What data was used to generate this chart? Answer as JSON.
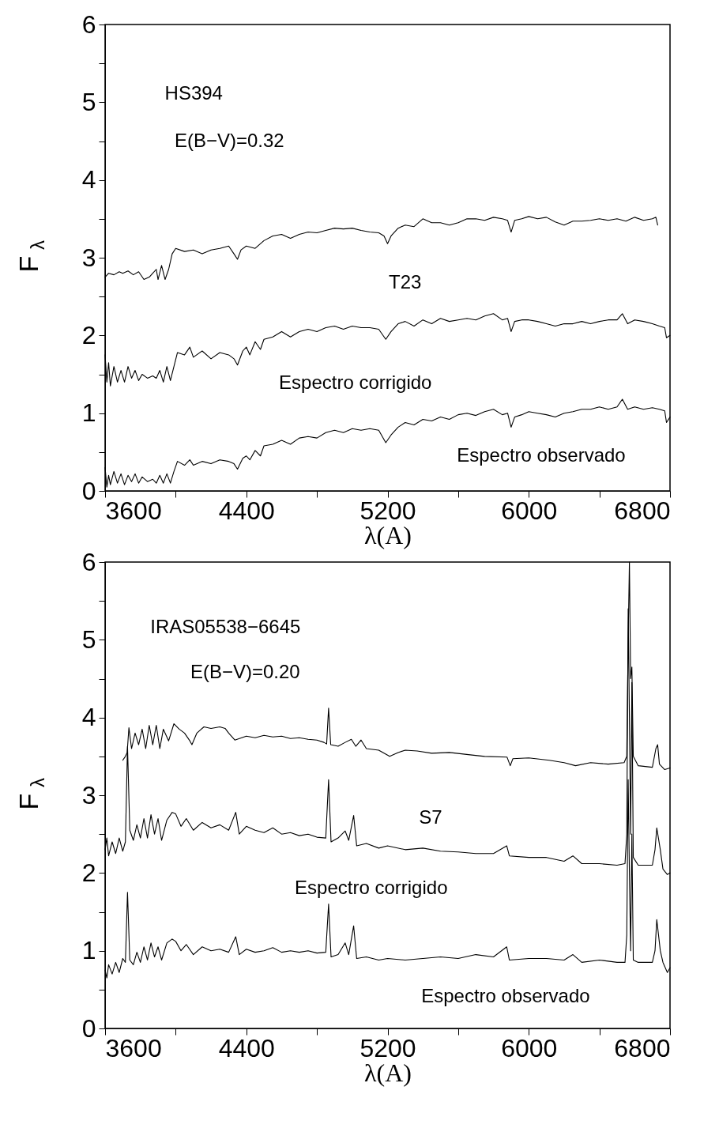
{
  "chart_data": [
    {
      "type": "line",
      "ylabel": "F$_{λ}$",
      "xlabel": "λ(A)",
      "xlim": [
        3600,
        6800
      ],
      "ylim": [
        0,
        6
      ],
      "grid": false,
      "legend": false,
      "marker": "none",
      "line_style": "solid",
      "xticks": [
        3600,
        {
          "value": 4000,
          "label": null
        },
        4400,
        {
          "value": 4800,
          "label": null
        },
        5200,
        {
          "value": 5600,
          "label": null
        },
        6000,
        {
          "value": 6400,
          "label": null
        },
        6800
      ],
      "yticks": [
        0,
        {
          "value": 0.5,
          "label": null
        },
        1,
        {
          "value": 1.5,
          "label": null
        },
        2,
        {
          "value": 2.5,
          "label": null
        },
        3,
        {
          "value": 3.5,
          "label": null
        },
        4,
        {
          "value": 4.5,
          "label": null
        },
        5,
        {
          "value": 5.5,
          "label": null
        },
        6
      ],
      "annotations": [
        "HS394",
        "E(B−V)=0.32",
        "T23",
        "Espectro corrigido",
        "Espectro observado"
      ],
      "series": [
        {
          "color": "#000000",
          "x": [
            3600,
            3620,
            3650,
            3680,
            3700,
            3730,
            3760,
            3790,
            3820,
            3850,
            3870,
            3890,
            3900,
            3920,
            3940,
            3960,
            3980,
            4000,
            4050,
            4100,
            4150,
            4200,
            4250,
            4300,
            4330,
            4350,
            4370,
            4400,
            4450,
            4500,
            4550,
            4600,
            4650,
            4700,
            4750,
            4800,
            4850,
            4900,
            4950,
            5000,
            5050,
            5100,
            5150,
            5180,
            5200,
            5220,
            5260,
            5300,
            5350,
            5400,
            5450,
            5500,
            5550,
            5600,
            5650,
            5700,
            5750,
            5800,
            5850,
            5880,
            5900,
            5920,
            5960,
            6000,
            6050,
            6100,
            6150,
            6200,
            6250,
            6300,
            6350,
            6400,
            6450,
            6500,
            6550,
            6600,
            6650,
            6700,
            6720,
            6730
          ],
          "values": [
            2.75,
            2.8,
            2.78,
            2.82,
            2.8,
            2.83,
            2.78,
            2.82,
            2.72,
            2.75,
            2.8,
            2.85,
            2.72,
            2.9,
            2.72,
            2.85,
            3.05,
            3.12,
            3.08,
            3.1,
            3.05,
            3.1,
            3.12,
            3.15,
            3.05,
            2.98,
            3.1,
            3.15,
            3.12,
            3.22,
            3.28,
            3.3,
            3.25,
            3.3,
            3.33,
            3.32,
            3.35,
            3.38,
            3.37,
            3.38,
            3.35,
            3.33,
            3.32,
            3.28,
            3.18,
            3.28,
            3.38,
            3.42,
            3.4,
            3.5,
            3.45,
            3.45,
            3.42,
            3.45,
            3.5,
            3.5,
            3.48,
            3.52,
            3.5,
            3.48,
            3.33,
            3.48,
            3.5,
            3.53,
            3.5,
            3.52,
            3.46,
            3.42,
            3.47,
            3.47,
            3.48,
            3.5,
            3.48,
            3.5,
            3.47,
            3.52,
            3.48,
            3.5,
            3.52,
            3.42
          ]
        },
        {
          "color": "#000000",
          "x": [
            3600,
            3610,
            3620,
            3630,
            3650,
            3670,
            3690,
            3710,
            3730,
            3750,
            3770,
            3790,
            3810,
            3840,
            3870,
            3890,
            3910,
            3930,
            3950,
            3970,
            3990,
            4010,
            4050,
            4080,
            4100,
            4150,
            4200,
            4250,
            4300,
            4330,
            4350,
            4380,
            4400,
            4420,
            4450,
            4480,
            4500,
            4550,
            4600,
            4650,
            4700,
            4750,
            4800,
            4850,
            4900,
            4950,
            5000,
            5050,
            5100,
            5150,
            5190,
            5220,
            5260,
            5300,
            5350,
            5400,
            5450,
            5500,
            5550,
            5600,
            5650,
            5700,
            5750,
            5800,
            5850,
            5880,
            5900,
            5920,
            5960,
            6000,
            6050,
            6100,
            6150,
            6200,
            6250,
            6300,
            6350,
            6400,
            6450,
            6500,
            6530,
            6560,
            6600,
            6650,
            6700,
            6740,
            6770,
            6780,
            6800
          ],
          "values": [
            1.75,
            1.4,
            1.65,
            1.35,
            1.6,
            1.4,
            1.55,
            1.4,
            1.6,
            1.45,
            1.55,
            1.42,
            1.5,
            1.45,
            1.48,
            1.45,
            1.55,
            1.4,
            1.6,
            1.42,
            1.6,
            1.78,
            1.75,
            1.85,
            1.72,
            1.8,
            1.7,
            1.78,
            1.75,
            1.7,
            1.62,
            1.8,
            1.85,
            1.75,
            1.92,
            1.82,
            1.95,
            1.98,
            2.05,
            1.98,
            2.05,
            2.08,
            2.05,
            2.1,
            2.12,
            2.08,
            2.12,
            2.1,
            2.1,
            2.08,
            1.95,
            2.05,
            2.15,
            2.18,
            2.12,
            2.2,
            2.15,
            2.22,
            2.18,
            2.2,
            2.22,
            2.2,
            2.25,
            2.28,
            2.2,
            2.22,
            2.05,
            2.18,
            2.2,
            2.2,
            2.18,
            2.15,
            2.12,
            2.15,
            2.15,
            2.18,
            2.15,
            2.18,
            2.2,
            2.2,
            2.28,
            2.15,
            2.2,
            2.18,
            2.15,
            2.12,
            2.1,
            1.97,
            2.0
          ]
        },
        {
          "color": "#000000",
          "x": [
            3600,
            3610,
            3620,
            3630,
            3650,
            3670,
            3690,
            3710,
            3730,
            3750,
            3770,
            3790,
            3810,
            3840,
            3870,
            3890,
            3910,
            3930,
            3950,
            3970,
            3990,
            4010,
            4050,
            4080,
            4100,
            4150,
            4200,
            4250,
            4300,
            4330,
            4350,
            4380,
            4400,
            4420,
            4450,
            4480,
            4500,
            4550,
            4600,
            4650,
            4700,
            4750,
            4800,
            4850,
            4900,
            4950,
            5000,
            5050,
            5100,
            5150,
            5190,
            5220,
            5260,
            5300,
            5350,
            5400,
            5450,
            5500,
            5550,
            5600,
            5650,
            5700,
            5750,
            5800,
            5850,
            5880,
            5900,
            5920,
            5960,
            6000,
            6050,
            6100,
            6150,
            6200,
            6250,
            6300,
            6350,
            6400,
            6450,
            6500,
            6530,
            6560,
            6600,
            6650,
            6700,
            6740,
            6770,
            6780,
            6800
          ],
          "values": [
            0.3,
            0.05,
            0.2,
            0.08,
            0.25,
            0.1,
            0.22,
            0.08,
            0.2,
            0.12,
            0.22,
            0.1,
            0.18,
            0.12,
            0.15,
            0.1,
            0.2,
            0.1,
            0.22,
            0.1,
            0.25,
            0.38,
            0.33,
            0.4,
            0.33,
            0.38,
            0.35,
            0.4,
            0.38,
            0.35,
            0.28,
            0.42,
            0.45,
            0.4,
            0.52,
            0.45,
            0.58,
            0.6,
            0.65,
            0.6,
            0.68,
            0.7,
            0.68,
            0.75,
            0.78,
            0.75,
            0.8,
            0.78,
            0.8,
            0.78,
            0.62,
            0.72,
            0.82,
            0.88,
            0.85,
            0.92,
            0.9,
            0.95,
            0.92,
            0.98,
            1.0,
            0.97,
            1.02,
            1.05,
            0.98,
            1.0,
            0.82,
            0.95,
            0.98,
            1.02,
            1.0,
            0.98,
            0.95,
            1.0,
            1.02,
            1.05,
            1.05,
            1.08,
            1.05,
            1.08,
            1.18,
            1.05,
            1.08,
            1.05,
            1.07,
            1.05,
            1.03,
            0.88,
            0.95
          ]
        }
      ]
    },
    {
      "type": "line",
      "ylabel": "F$_{λ}$",
      "xlabel": "λ(A)",
      "xlim": [
        3600,
        6800
      ],
      "ylim": [
        0,
        6
      ],
      "grid": false,
      "legend": false,
      "marker": "none",
      "line_style": "solid",
      "xticks": [
        3600,
        {
          "value": 4000,
          "label": null
        },
        4400,
        {
          "value": 4800,
          "label": null
        },
        5200,
        {
          "value": 5600,
          "label": null
        },
        6000,
        {
          "value": 6400,
          "label": null
        },
        6800
      ],
      "yticks": [
        0,
        {
          "value": 0.5,
          "label": null
        },
        1,
        {
          "value": 1.5,
          "label": null
        },
        2,
        {
          "value": 2.5,
          "label": null
        },
        3,
        {
          "value": 3.5,
          "label": null
        },
        4,
        {
          "value": 4.5,
          "label": null
        },
        5,
        {
          "value": 5.5,
          "label": null
        },
        6
      ],
      "annotations": [
        "IRAS05538−6645",
        "E(B−V)=0.20",
        "S7",
        "Espectro corrigido",
        "Espectro observado"
      ],
      "series": [
        {
          "color": "#000000",
          "x": [
            3700,
            3715,
            3725,
            3735,
            3750,
            3770,
            3790,
            3810,
            3830,
            3850,
            3870,
            3890,
            3910,
            3930,
            3960,
            3990,
            4020,
            4050,
            4080,
            4092,
            4120,
            4160,
            4200,
            4250,
            4280,
            4300,
            4335,
            4400,
            4450,
            4500,
            4550,
            4600,
            4650,
            4700,
            4750,
            4800,
            4840,
            4855,
            4866,
            4878,
            4920,
            4960,
            4995,
            5020,
            5050,
            5080,
            5150,
            5212,
            5260,
            5300,
            5368,
            5450,
            5550,
            5668,
            5750,
            5877,
            5895,
            5910,
            6000,
            6116,
            6200,
            6265,
            6350,
            6450,
            6540,
            6555,
            6563,
            6570,
            6577,
            6584,
            6592,
            6620,
            6700,
            6720,
            6730,
            6740,
            6770,
            6800
          ],
          "values": [
            3.45,
            3.5,
            3.55,
            3.87,
            3.6,
            3.8,
            3.65,
            3.85,
            3.6,
            3.9,
            3.65,
            3.9,
            3.6,
            3.85,
            3.7,
            3.92,
            3.85,
            3.8,
            3.7,
            3.65,
            3.8,
            3.88,
            3.86,
            3.88,
            3.86,
            3.8,
            3.71,
            3.76,
            3.74,
            3.77,
            3.75,
            3.76,
            3.73,
            3.74,
            3.72,
            3.71,
            3.68,
            3.66,
            4.12,
            3.65,
            3.63,
            3.68,
            3.72,
            3.63,
            3.71,
            3.6,
            3.58,
            3.5,
            3.55,
            3.58,
            3.57,
            3.54,
            3.55,
            3.52,
            3.5,
            3.49,
            3.38,
            3.47,
            3.48,
            3.45,
            3.42,
            3.38,
            3.42,
            3.4,
            3.42,
            3.5,
            5.0,
            6.0,
            4.5,
            4.65,
            3.5,
            3.38,
            3.36,
            3.6,
            3.65,
            3.4,
            3.33,
            3.35
          ]
        },
        {
          "color": "#000000",
          "x": [
            3600,
            3610,
            3620,
            3640,
            3660,
            3680,
            3700,
            3715,
            3727,
            3740,
            3760,
            3780,
            3800,
            3820,
            3840,
            3860,
            3880,
            3900,
            3920,
            3950,
            3980,
            4000,
            4030,
            4060,
            4100,
            4150,
            4200,
            4250,
            4300,
            4340,
            4360,
            4400,
            4450,
            4500,
            4550,
            4600,
            4650,
            4700,
            4750,
            4800,
            4850,
            4866,
            4880,
            4920,
            4960,
            4980,
            5008,
            5025,
            5080,
            5150,
            5200,
            5300,
            5400,
            5500,
            5600,
            5700,
            5800,
            5875,
            5890,
            6000,
            6100,
            6200,
            6250,
            6300,
            6400,
            6500,
            6545,
            6555,
            6563,
            6570,
            6577,
            6584,
            6592,
            6620,
            6700,
            6715,
            6725,
            6745,
            6760,
            6785,
            6800
          ],
          "values": [
            2.3,
            2.45,
            2.22,
            2.4,
            2.25,
            2.45,
            2.28,
            2.4,
            3.63,
            2.55,
            2.42,
            2.62,
            2.45,
            2.7,
            2.45,
            2.75,
            2.5,
            2.7,
            2.42,
            2.68,
            2.78,
            2.76,
            2.6,
            2.7,
            2.55,
            2.65,
            2.58,
            2.62,
            2.55,
            2.78,
            2.5,
            2.6,
            2.55,
            2.52,
            2.58,
            2.5,
            2.52,
            2.48,
            2.5,
            2.46,
            2.45,
            3.2,
            2.4,
            2.45,
            2.54,
            2.42,
            2.74,
            2.35,
            2.38,
            2.32,
            2.35,
            2.3,
            2.32,
            2.28,
            2.27,
            2.25,
            2.25,
            2.35,
            2.22,
            2.2,
            2.2,
            2.15,
            2.22,
            2.12,
            2.12,
            2.1,
            2.12,
            2.5,
            5.4,
            4.0,
            2.5,
            4.45,
            2.2,
            2.1,
            2.1,
            2.3,
            2.58,
            2.3,
            2.05,
            1.98,
            2.0
          ]
        },
        {
          "color": "#000000",
          "x": [
            3600,
            3610,
            3620,
            3640,
            3660,
            3680,
            3700,
            3715,
            3727,
            3740,
            3760,
            3780,
            3800,
            3820,
            3840,
            3860,
            3880,
            3900,
            3920,
            3950,
            3980,
            4000,
            4030,
            4060,
            4100,
            4150,
            4200,
            4250,
            4300,
            4340,
            4360,
            4400,
            4450,
            4500,
            4550,
            4600,
            4650,
            4700,
            4750,
            4800,
            4850,
            4866,
            4880,
            4920,
            4960,
            4980,
            5008,
            5025,
            5080,
            5150,
            5200,
            5300,
            5400,
            5500,
            5600,
            5700,
            5800,
            5875,
            5890,
            6000,
            6100,
            6200,
            6250,
            6300,
            6400,
            6500,
            6545,
            6555,
            6563,
            6570,
            6577,
            6584,
            6592,
            6620,
            6700,
            6715,
            6725,
            6745,
            6760,
            6785,
            6800
          ],
          "values": [
            0.75,
            0.65,
            0.82,
            0.7,
            0.85,
            0.72,
            0.9,
            0.85,
            1.75,
            0.88,
            0.82,
            0.98,
            0.85,
            1.05,
            0.88,
            1.1,
            0.92,
            1.05,
            0.88,
            1.1,
            1.15,
            1.12,
            1.0,
            1.08,
            0.95,
            1.05,
            1.0,
            1.02,
            0.98,
            1.18,
            0.95,
            1.02,
            0.98,
            1.0,
            1.04,
            0.98,
            1.0,
            0.98,
            1.0,
            0.97,
            0.98,
            1.6,
            0.92,
            0.95,
            1.1,
            0.95,
            1.32,
            0.9,
            0.92,
            0.88,
            0.9,
            0.88,
            0.9,
            0.92,
            0.9,
            0.95,
            0.92,
            1.05,
            0.88,
            0.9,
            0.9,
            0.88,
            0.95,
            0.85,
            0.88,
            0.85,
            0.85,
            1.2,
            3.2,
            2.0,
            1.0,
            2.5,
            0.88,
            0.85,
            0.85,
            1.0,
            1.4,
            1.0,
            0.85,
            0.72,
            0.78
          ]
        }
      ]
    }
  ]
}
